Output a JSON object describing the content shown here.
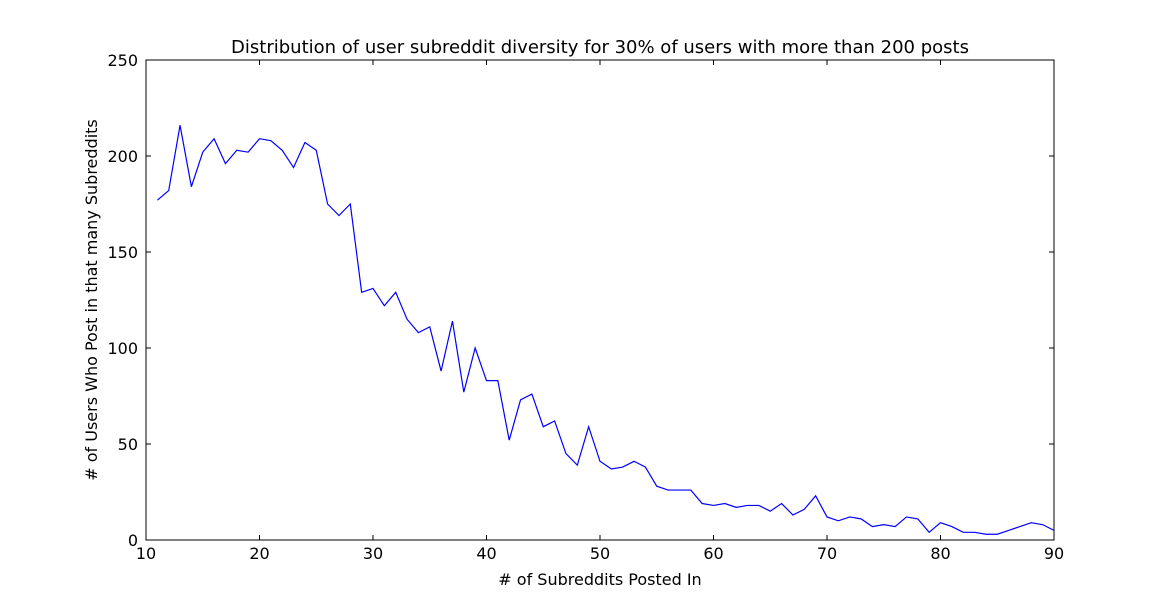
{
  "chart_data": {
    "type": "line",
    "title": "Distribution of user subreddit diversity for 30% of users with more than 200 posts",
    "xlabel": "# of Subreddits Posted In",
    "ylabel": "# of Users Who Post in that many Subreddits",
    "xlim": [
      10,
      90
    ],
    "ylim": [
      0,
      250
    ],
    "xticks": [
      10,
      20,
      30,
      40,
      50,
      60,
      70,
      80,
      90
    ],
    "yticks": [
      0,
      50,
      100,
      150,
      200,
      250
    ],
    "grid": false,
    "legend": "none",
    "series": [
      {
        "color": "#0000ff",
        "x": [
          11,
          12,
          13,
          14,
          15,
          16,
          17,
          18,
          19,
          20,
          21,
          22,
          23,
          24,
          25,
          26,
          27,
          28,
          29,
          30,
          31,
          32,
          33,
          34,
          35,
          36,
          37,
          38,
          39,
          40,
          41,
          42,
          43,
          44,
          45,
          46,
          47,
          48,
          49,
          50,
          51,
          52,
          53,
          54,
          55,
          56,
          57,
          58,
          59,
          60,
          61,
          62,
          63,
          64,
          65,
          66,
          67,
          68,
          69,
          70,
          71,
          72,
          73,
          74,
          75,
          76,
          77,
          78,
          79,
          80,
          81,
          82,
          83,
          84,
          85,
          86,
          87,
          88,
          89,
          90
        ],
        "y": [
          177,
          182,
          216,
          184,
          202,
          209,
          196,
          203,
          202,
          209,
          208,
          203,
          194,
          207,
          203,
          175,
          169,
          175,
          129,
          131,
          122,
          129,
          115,
          108,
          111,
          88,
          114,
          77,
          100,
          83,
          83,
          52,
          73,
          76,
          59,
          62,
          45,
          39,
          59,
          41,
          37,
          38,
          41,
          38,
          28,
          26,
          26,
          26,
          19,
          18,
          19,
          17,
          18,
          18,
          15,
          19,
          13,
          16,
          23,
          12,
          10,
          12,
          11,
          7,
          8,
          7,
          12,
          11,
          4,
          9,
          7,
          4,
          4,
          3,
          3,
          5,
          7,
          9,
          8,
          5
        ]
      }
    ]
  }
}
